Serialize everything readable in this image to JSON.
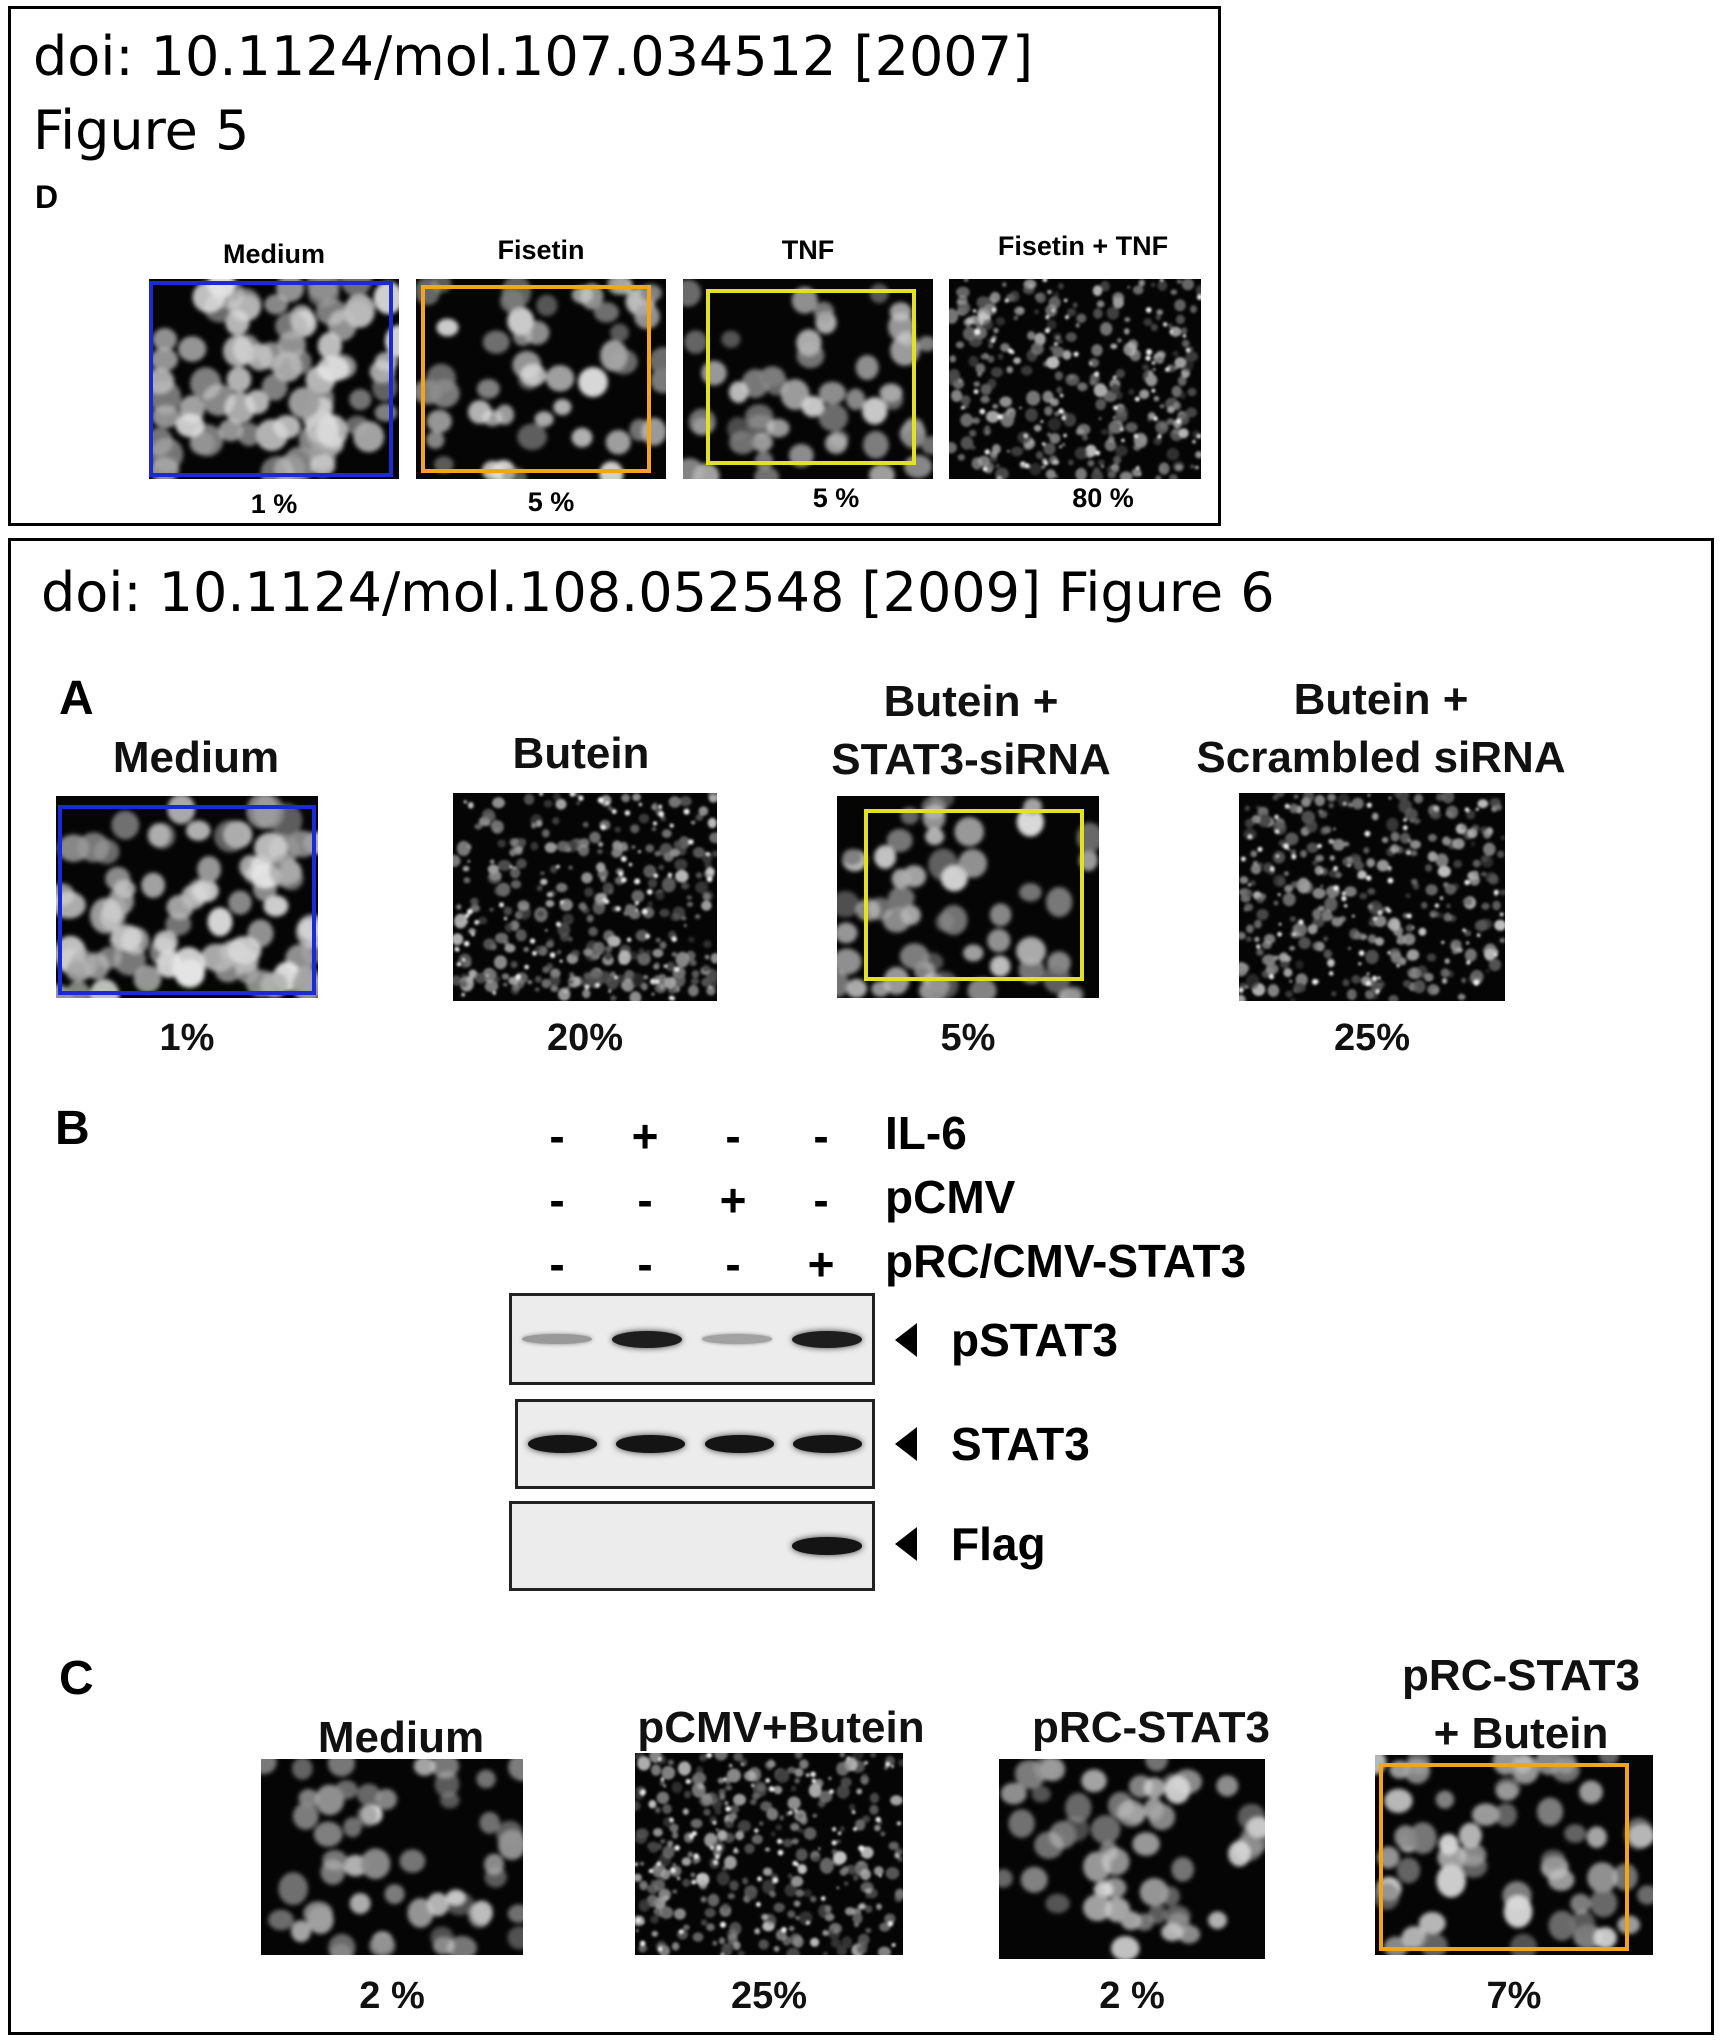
{
  "figure5": {
    "title_line1": "doi: 10.1124/mol.107.034512 [2007]",
    "title_line2": "Figure 5",
    "panel_letter": "D",
    "panels": [
      {
        "label": "Medium",
        "percent": "1 %",
        "roi_color": "#1a2bd6"
      },
      {
        "label": "Fisetin",
        "percent": "5 %",
        "roi_color": "#f3a31c"
      },
      {
        "label": "TNF",
        "percent": "5 %",
        "roi_color": "#e3e02a"
      },
      {
        "label": "Fisetin + TNF",
        "percent": "80 %",
        "roi_color": null
      }
    ]
  },
  "figure6": {
    "title": "doi: 10.1124/mol.108.052548 [2009] Figure 6",
    "panelA": {
      "letter": "A",
      "panels": [
        {
          "label_line1": "Medium",
          "label_line2": "",
          "percent": "1%",
          "roi_color": "#1a2bd6"
        },
        {
          "label_line1": "Butein",
          "label_line2": "",
          "percent": "20%",
          "roi_color": null
        },
        {
          "label_line1": "Butein +",
          "label_line2": "STAT3-siRNA",
          "percent": "5%",
          "roi_color": "#e3e02a"
        },
        {
          "label_line1": "Butein +",
          "label_line2": "Scrambled siRNA",
          "percent": "25%",
          "roi_color": null
        }
      ]
    },
    "panelB": {
      "letter": "B",
      "conditions": [
        {
          "name": "IL-6",
          "signs": [
            "-",
            "+",
            "-",
            "-"
          ]
        },
        {
          "name": "pCMV",
          "signs": [
            "-",
            "-",
            "+",
            "-"
          ]
        },
        {
          "name": "pRC/CMV-STAT3",
          "signs": [
            "-",
            "-",
            "-",
            "+"
          ]
        }
      ],
      "blots": [
        {
          "name": "pSTAT3",
          "band_intensity": [
            0.25,
            0.9,
            0.2,
            0.9
          ]
        },
        {
          "name": "STAT3",
          "band_intensity": [
            0.95,
            0.95,
            0.95,
            0.95
          ]
        },
        {
          "name": "Flag",
          "band_intensity": [
            0,
            0,
            0,
            0.95
          ]
        }
      ]
    },
    "panelC": {
      "letter": "C",
      "panels": [
        {
          "label_line1": "",
          "label_line2": "Medium",
          "percent": "2 %",
          "roi_color": null
        },
        {
          "label_line1": "",
          "label_line2": "pCMV+Butein",
          "percent": "25%",
          "roi_color": null
        },
        {
          "label_line1": "",
          "label_line2": "pRC-STAT3",
          "percent": "2 %",
          "roi_color": null
        },
        {
          "label_line1": "pRC-STAT3",
          "label_line2": "+ Butein",
          "percent": "7%",
          "roi_color": "#f3a31c"
        }
      ]
    }
  }
}
